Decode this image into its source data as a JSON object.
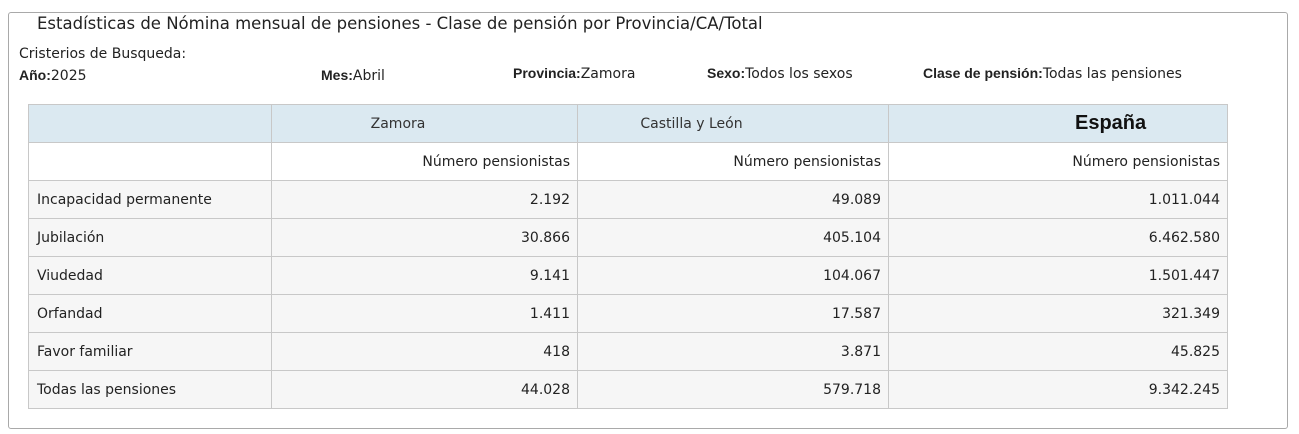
{
  "window_title": "Estadísticas de Nómina mensual de pensiones - Clase de pensión por Provincia/CA/Total",
  "criteria": {
    "title": "Cristerios de Busqueda:",
    "year_label": "Año:",
    "year_value": "2025",
    "month_label": "Mes:",
    "month_value": "Abril",
    "province_label": "Provincia:",
    "province_value": "Zamora",
    "sex_label": "Sexo:",
    "sex_value": "Todos los sexos",
    "class_label": "Clase de pensión:",
    "class_value": "Todas las pensiones"
  },
  "table": {
    "regions": [
      "Zamora",
      "Castilla y León",
      "España"
    ],
    "metric_headers": [
      "Número pensionistas",
      "Número pensionistas",
      "Número pensionistas"
    ],
    "rows": [
      {
        "label": "Incapacidad permanente",
        "values": [
          "2.192",
          "49.089",
          "1.011.044"
        ]
      },
      {
        "label": "Jubilación",
        "values": [
          "30.866",
          "405.104",
          "6.462.580"
        ]
      },
      {
        "label": "Viudedad",
        "values": [
          "9.141",
          "104.067",
          "1.501.447"
        ]
      },
      {
        "label": "Orfandad",
        "values": [
          "1.411",
          "17.587",
          "321.349"
        ]
      },
      {
        "label": "Favor familiar",
        "values": [
          "418",
          "3.871",
          "45.825"
        ]
      },
      {
        "label": "Todas las pensiones",
        "values": [
          "44.028",
          "579.718",
          "9.342.245"
        ]
      }
    ]
  },
  "colors": {
    "header_background": "#dbe9f1",
    "row_background": "#f6f6f6",
    "border": "#c8c8c8"
  }
}
